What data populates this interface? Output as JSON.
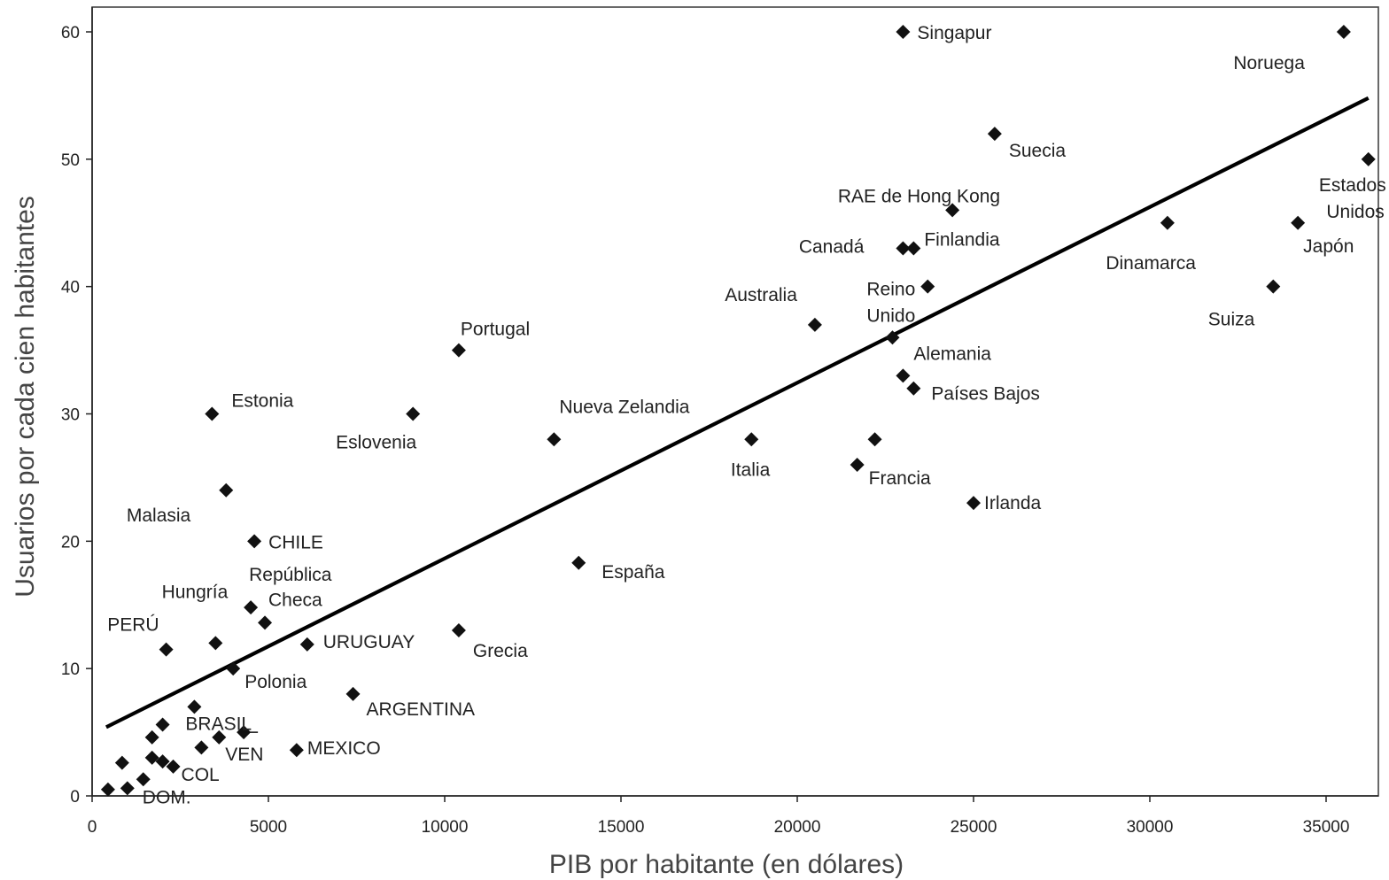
{
  "chart_data": {
    "type": "scatter",
    "xlabel": "PIB por habitante (en dólares)",
    "ylabel": "Usuarios por cada cien habitantes",
    "xlim": [
      0,
      36500
    ],
    "ylim": [
      0,
      62
    ],
    "x_ticks": [
      "0",
      "5000",
      "10000",
      "15000",
      "20000",
      "25000",
      "30000",
      "35000"
    ],
    "y_ticks": [
      "0",
      "10",
      "20",
      "30",
      "40",
      "50",
      "60"
    ],
    "grid": false,
    "trendline": {
      "x": [
        400,
        36200
      ],
      "y": [
        5.4,
        54.8
      ]
    },
    "points": [
      {
        "x": 23000,
        "y": 60,
        "label": "Singapur"
      },
      {
        "x": 35500,
        "y": 60,
        "label": "Noruega"
      },
      {
        "x": 25600,
        "y": 52,
        "label": "Suecia"
      },
      {
        "x": 36200,
        "y": 50,
        "label": "Estados"
      },
      {
        "x": 36200,
        "y": 50,
        "label": "Unidos"
      },
      {
        "x": 24400,
        "y": 46,
        "label": "RAE de Hong Kong"
      },
      {
        "x": 30500,
        "y": 45,
        "label": "Dinamarca"
      },
      {
        "x": 34200,
        "y": 45,
        "label": "Japón"
      },
      {
        "x": 23000,
        "y": 43,
        "label": "Canadá"
      },
      {
        "x": 23300,
        "y": 43,
        "label": "Finlandia"
      },
      {
        "x": 23700,
        "y": 40,
        "label": "Reino"
      },
      {
        "x": 23700,
        "y": 40,
        "label": "Unido"
      },
      {
        "x": 33500,
        "y": 40,
        "label": "Suiza"
      },
      {
        "x": 20500,
        "y": 37,
        "label": "Australia"
      },
      {
        "x": 22700,
        "y": 36,
        "label": ""
      },
      {
        "x": 10400,
        "y": 35,
        "label": "Portugal"
      },
      {
        "x": 23000,
        "y": 33,
        "label": "Alemania"
      },
      {
        "x": 23300,
        "y": 32,
        "label": "Países Bajos"
      },
      {
        "x": 3400,
        "y": 30,
        "label": "Estonia"
      },
      {
        "x": 9100,
        "y": 30,
        "label": "Eslovenia"
      },
      {
        "x": 13100,
        "y": 28,
        "label": "Nueva Zelandia"
      },
      {
        "x": 18700,
        "y": 28,
        "label": "Italia"
      },
      {
        "x": 22200,
        "y": 28,
        "label": ""
      },
      {
        "x": 21700,
        "y": 26,
        "label": "Francia"
      },
      {
        "x": 3800,
        "y": 24,
        "label": "Malasia"
      },
      {
        "x": 25000,
        "y": 23,
        "label": "Irlanda"
      },
      {
        "x": 4600,
        "y": 20,
        "label": "CHILE"
      },
      {
        "x": 13800,
        "y": 18.3,
        "label": "España"
      },
      {
        "x": 4500,
        "y": 14.8,
        "label": "República"
      },
      {
        "x": 4900,
        "y": 13.6,
        "label": "Checa"
      },
      {
        "x": 3500,
        "y": 12,
        "label": "Hungría"
      },
      {
        "x": 10400,
        "y": 13,
        "label": "Grecia"
      },
      {
        "x": 6100,
        "y": 11.9,
        "label": "URUGUAY"
      },
      {
        "x": 2100,
        "y": 11.5,
        "label": "PERÚ"
      },
      {
        "x": 4000,
        "y": 10,
        "label": "Polonia"
      },
      {
        "x": 7400,
        "y": 8,
        "label": "ARGENTINA"
      },
      {
        "x": 2900,
        "y": 7,
        "label": "BRASIL"
      },
      {
        "x": 2000,
        "y": 5.6,
        "label": ""
      },
      {
        "x": 1700,
        "y": 4.6,
        "label": ""
      },
      {
        "x": 4300,
        "y": 5,
        "label": ""
      },
      {
        "x": 3600,
        "y": 4.6,
        "label": "VEN"
      },
      {
        "x": 3100,
        "y": 3.8,
        "label": ""
      },
      {
        "x": 5800,
        "y": 3.6,
        "label": "MEXICO"
      },
      {
        "x": 1700,
        "y": 3,
        "label": ""
      },
      {
        "x": 2000,
        "y": 2.7,
        "label": ""
      },
      {
        "x": 2300,
        "y": 2.3,
        "label": "COL"
      },
      {
        "x": 850,
        "y": 2.6,
        "label": ""
      },
      {
        "x": 1450,
        "y": 1.3,
        "label": ""
      },
      {
        "x": 1000,
        "y": 0.6,
        "label": "DOM."
      },
      {
        "x": 450,
        "y": 0.5,
        "label": ""
      }
    ]
  }
}
